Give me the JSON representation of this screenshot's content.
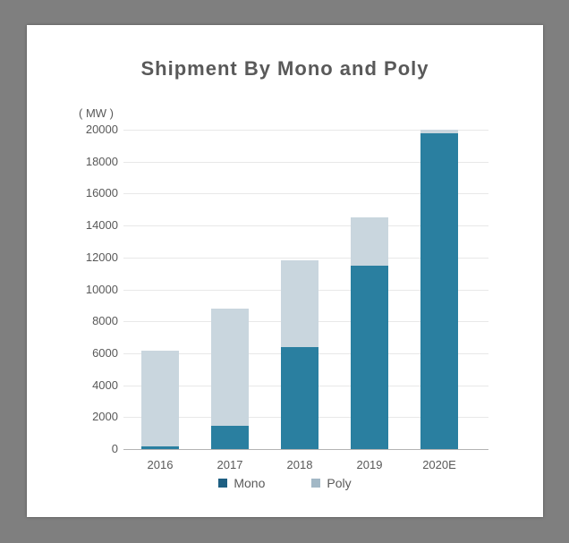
{
  "frame": {
    "background_color": "#7f7f7f",
    "card_background_color": "#ffffff"
  },
  "chart_data": {
    "type": "bar",
    "stacked": true,
    "title": "Shipment By Mono and Poly",
    "unit_label": "( MW )",
    "xlabel": "",
    "ylabel": "MW",
    "categories": [
      "2016",
      "2017",
      "2018",
      "2019",
      "2020E"
    ],
    "series": [
      {
        "name": "Mono",
        "color": "#2a7fa0",
        "legend_color": "#1e5f82",
        "values": [
          150,
          1450,
          6400,
          11500,
          19800
        ]
      },
      {
        "name": "Poly",
        "color": "#c9d6de",
        "legend_color": "#a2b8c6",
        "values": [
          6000,
          7350,
          5400,
          3000,
          200
        ]
      }
    ],
    "totals": [
      6150,
      8800,
      11800,
      14500,
      20000
    ],
    "ylim": [
      0,
      20000
    ],
    "ytick_step": 2000,
    "yticks": [
      "0",
      "2000",
      "4000",
      "6000",
      "8000",
      "10000",
      "12000",
      "14000",
      "16000",
      "18000",
      "20000"
    ],
    "grid": true,
    "legend_position": "bottom",
    "text_color": "#595959",
    "gridline_color": "#e8e8e8",
    "axisline_color": "#b3b3b3"
  }
}
